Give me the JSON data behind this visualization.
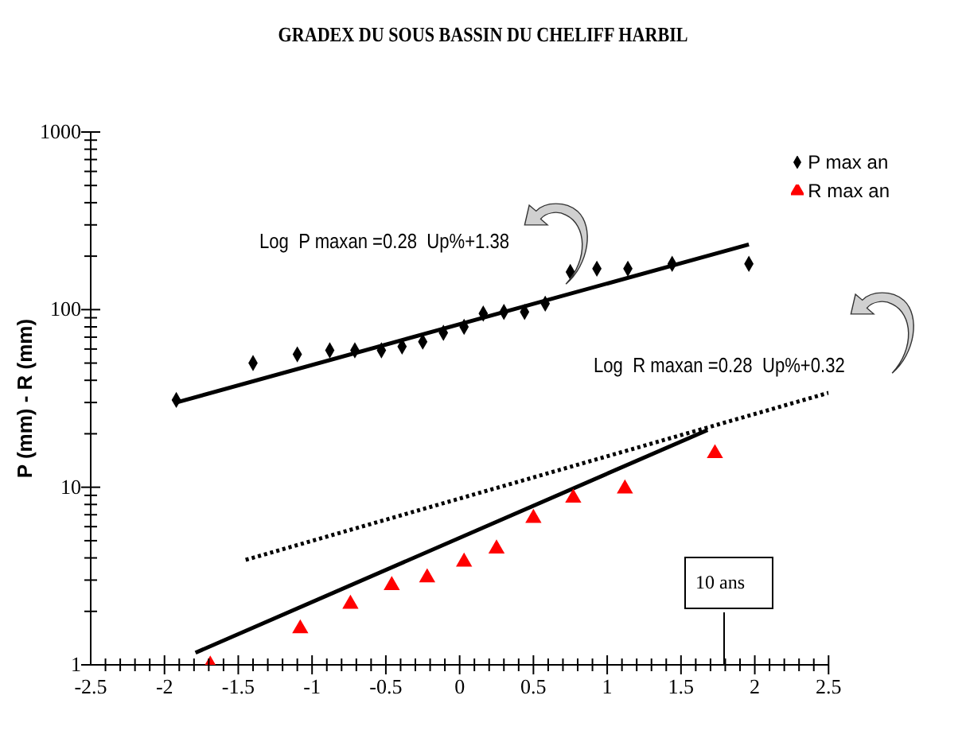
{
  "chart_data": {
    "type": "scatter",
    "title": "GRADEX DU SOUS BASSIN DU CHELIFF HARBIL",
    "ylabel": "P (mm) - R (mm)",
    "log": "y",
    "legend": "top right",
    "xlim": [
      -2.5,
      2.5
    ],
    "xticks": [
      -2.5,
      {
        "value": -2.4,
        "label": null
      },
      {
        "value": -2.3,
        "label": null
      },
      {
        "value": -2.2,
        "label": null
      },
      {
        "value": -2.1,
        "label": null
      },
      -2,
      {
        "value": -1.9,
        "label": null
      },
      {
        "value": -1.8,
        "label": null
      },
      {
        "value": -1.7,
        "label": null
      },
      {
        "value": -1.6,
        "label": null
      },
      -1.5,
      {
        "value": -1.4,
        "label": null
      },
      {
        "value": -1.3,
        "label": null
      },
      {
        "value": -1.2,
        "label": null
      },
      {
        "value": -1.1,
        "label": null
      },
      -1,
      {
        "value": -0.9,
        "label": null
      },
      {
        "value": -0.8,
        "label": null
      },
      {
        "value": -0.7,
        "label": null
      },
      {
        "value": -0.6,
        "label": null
      },
      -0.5,
      {
        "value": -0.4,
        "label": null
      },
      {
        "value": -0.3,
        "label": null
      },
      {
        "value": -0.2,
        "label": null
      },
      {
        "value": -0.1,
        "label": null
      },
      0,
      {
        "value": 0.1,
        "label": null
      },
      {
        "value": 0.2,
        "label": null
      },
      {
        "value": 0.3,
        "label": null
      },
      {
        "value": 0.4,
        "label": null
      },
      0.5,
      {
        "value": 0.6,
        "label": null
      },
      {
        "value": 0.7,
        "label": null
      },
      {
        "value": 0.8,
        "label": null
      },
      {
        "value": 0.9,
        "label": null
      },
      1,
      {
        "value": 1.1,
        "label": null
      },
      {
        "value": 1.2,
        "label": null
      },
      {
        "value": 1.3,
        "label": null
      },
      {
        "value": 1.4,
        "label": null
      },
      1.5,
      {
        "value": 1.6,
        "label": null
      },
      {
        "value": 1.7,
        "label": null
      },
      {
        "value": 1.8,
        "label": null
      },
      {
        "value": 1.9,
        "label": null
      },
      2,
      {
        "value": 2.1,
        "label": null
      },
      {
        "value": 2.2,
        "label": null
      },
      {
        "value": 2.3,
        "label": null
      },
      {
        "value": 2.4,
        "label": null
      },
      2.5
    ],
    "ylim": [
      1,
      1000
    ],
    "yticks": [
      1,
      {
        "value": 2,
        "label": null
      },
      {
        "value": 3,
        "label": null
      },
      {
        "value": 4,
        "label": null
      },
      {
        "value": 5,
        "label": null
      },
      {
        "value": 6,
        "label": null
      },
      {
        "value": 7,
        "label": null
      },
      {
        "value": 8,
        "label": null
      },
      {
        "value": 9,
        "label": null
      },
      10,
      {
        "value": 20,
        "label": null
      },
      {
        "value": 30,
        "label": null
      },
      {
        "value": 40,
        "label": null
      },
      {
        "value": 50,
        "label": null
      },
      {
        "value": 60,
        "label": null
      },
      {
        "value": 70,
        "label": null
      },
      {
        "value": 80,
        "label": null
      },
      {
        "value": 90,
        "label": null
      },
      100,
      {
        "value": 200,
        "label": null
      },
      {
        "value": 300,
        "label": null
      },
      {
        "value": 400,
        "label": null
      },
      {
        "value": 500,
        "label": null
      },
      {
        "value": 600,
        "label": null
      },
      {
        "value": 700,
        "label": null
      },
      {
        "value": 800,
        "label": null
      },
      {
        "value": 900,
        "label": null
      },
      1000
    ],
    "series": [
      {
        "name": "P max an",
        "marker": "diamond",
        "color": "#000000",
        "x": [
          -1.92,
          -1.4,
          -1.1,
          -0.88,
          -0.71,
          -0.53,
          -0.39,
          -0.25,
          -0.11,
          0.03,
          0.16,
          0.3,
          0.44,
          0.58,
          0.75,
          0.93,
          1.14,
          1.44,
          1.96
        ],
        "values": [
          31,
          50,
          56,
          59,
          59,
          59,
          62,
          66,
          74,
          80,
          95,
          97,
          97,
          108,
          163,
          170,
          170,
          181,
          181
        ]
      },
      {
        "name": "R max an",
        "marker": "triangle",
        "color": "#ff0000",
        "x": [
          -1.69,
          -1.08,
          -0.74,
          -0.46,
          -0.22,
          0.03,
          0.25,
          0.5,
          0.77,
          1.12,
          1.73
        ],
        "values": [
          1,
          1.6,
          2.2,
          2.8,
          3.1,
          3.8,
          4.5,
          6.7,
          8.7,
          9.8,
          15.5
        ]
      },
      {
        "type": "line",
        "marker": "none",
        "line_style": "solid",
        "color": "#000000",
        "x": [
          -1.92,
          1.96
        ],
        "values": [
          30,
          233
        ]
      },
      {
        "type": "line",
        "marker": "none",
        "line_style": "solid",
        "color": "#000000",
        "x": [
          -1.79,
          1.68
        ],
        "values": [
          1.17,
          21
        ]
      },
      {
        "type": "line",
        "marker": "none",
        "line_style": "dotted",
        "color": "#000000",
        "x": [
          -1.45,
          2.5
        ],
        "values": [
          3.9,
          34
        ]
      }
    ],
    "annotations": [
      "Log  P maxan =0.28  Up%+1.38",
      "Log  R maxan =0.28  Up%+0.32",
      "10 ans"
    ]
  }
}
